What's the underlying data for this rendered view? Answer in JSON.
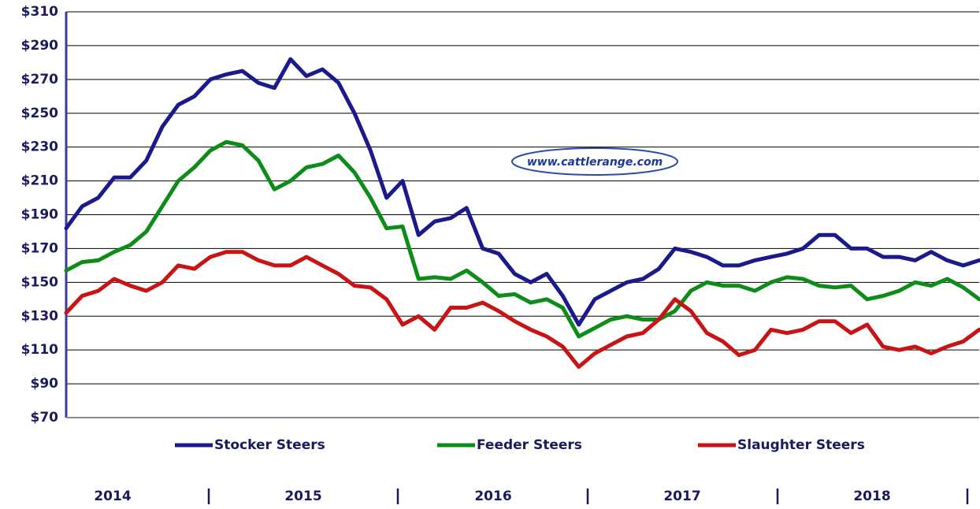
{
  "chart_data": {
    "type": "line",
    "watermark": "www.cattlerange.com",
    "categories": [
      null,
      null,
      null,
      null,
      null,
      null,
      null,
      null,
      null,
      null,
      null,
      null,
      null,
      null,
      null,
      null,
      null,
      null,
      null,
      null,
      null,
      null,
      null,
      null,
      null,
      null,
      null,
      null,
      null,
      null,
      null,
      null,
      null,
      null,
      null,
      null,
      null,
      null,
      null,
      null,
      null,
      null,
      null,
      null,
      null,
      null,
      null,
      null,
      null,
      null,
      null,
      null,
      null,
      null,
      null,
      null,
      null,
      null
    ],
    "year_labels": [
      "2014",
      "2015",
      "2016",
      "2017",
      "2018"
    ],
    "series": [
      {
        "name": "Stocker Steers",
        "color": "#1a1a8c",
        "values": [
          182,
          195,
          200,
          212,
          212,
          222,
          242,
          255,
          260,
          270,
          273,
          275,
          268,
          265,
          282,
          272,
          276,
          268,
          250,
          228,
          200,
          210,
          178,
          186,
          188,
          194,
          170,
          167,
          155,
          150,
          155,
          142,
          125,
          140,
          145,
          150,
          152,
          158,
          170,
          168,
          165,
          160,
          160,
          163,
          165,
          167,
          170,
          178,
          178,
          170,
          170,
          165,
          165,
          163,
          168,
          163,
          160,
          163
        ]
      },
      {
        "name": "Feeder Steers",
        "color": "#0e8c1a",
        "values": [
          157,
          162,
          163,
          168,
          172,
          180,
          195,
          210,
          218,
          228,
          233,
          231,
          222,
          205,
          210,
          218,
          220,
          225,
          215,
          200,
          182,
          183,
          152,
          153,
          152,
          157,
          150,
          142,
          143,
          138,
          140,
          135,
          118,
          123,
          128,
          130,
          128,
          128,
          133,
          145,
          150,
          148,
          148,
          145,
          150,
          153,
          152,
          148,
          147,
          148,
          140,
          142,
          145,
          150,
          148,
          152,
          147,
          140
        ]
      },
      {
        "name": "Slaughter Steers",
        "color": "#c81414",
        "values": [
          132,
          142,
          145,
          152,
          148,
          145,
          150,
          160,
          158,
          165,
          168,
          168,
          163,
          160,
          160,
          165,
          160,
          155,
          148,
          147,
          140,
          125,
          130,
          122,
          135,
          135,
          138,
          133,
          127,
          122,
          118,
          112,
          100,
          108,
          113,
          118,
          120,
          128,
          140,
          133,
          120,
          115,
          107,
          110,
          122,
          120,
          122,
          127,
          127,
          120,
          125,
          112,
          110,
          112,
          108,
          112,
          115,
          122
        ]
      }
    ],
    "ylim": [
      70,
      310
    ],
    "yticks": [
      {
        "value": 70,
        "label": "$70"
      },
      {
        "value": 90,
        "label": "$90"
      },
      {
        "value": 110,
        "label": "$110"
      },
      {
        "value": 130,
        "label": "$130"
      },
      {
        "value": 150,
        "label": "$150"
      },
      {
        "value": 170,
        "label": "$170"
      },
      {
        "value": 190,
        "label": "$190"
      },
      {
        "value": 210,
        "label": "$210"
      },
      {
        "value": 230,
        "label": "$230"
      },
      {
        "value": 250,
        "label": "$250"
      },
      {
        "value": 270,
        "label": "$270"
      },
      {
        "value": 290,
        "label": "$290"
      },
      {
        "value": 310,
        "label": "$310"
      }
    ],
    "grid": true
  }
}
